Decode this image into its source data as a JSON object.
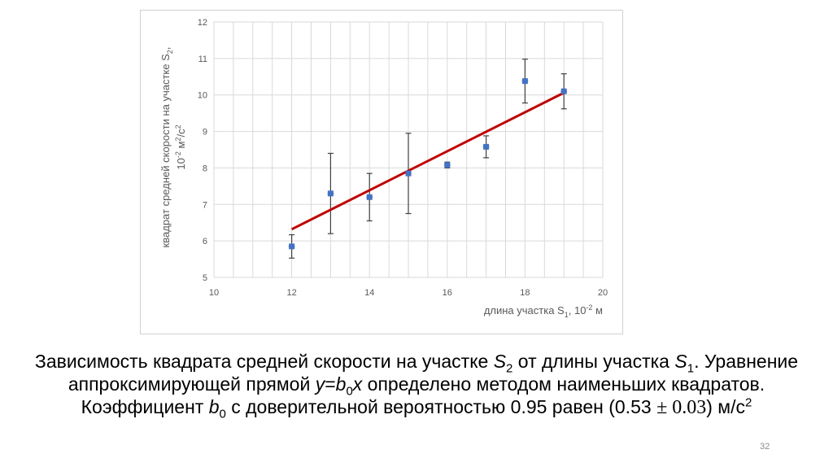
{
  "chart_data": {
    "type": "scatter",
    "x": [
      12,
      13,
      14,
      15,
      16,
      17,
      18,
      19
    ],
    "y": [
      5.85,
      7.3,
      7.2,
      7.85,
      8.08,
      8.58,
      10.38,
      10.1
    ],
    "y_err": [
      0.32,
      1.1,
      0.65,
      1.1,
      0.08,
      0.3,
      0.6,
      0.48
    ],
    "x_err": [
      0.08,
      0.08,
      0.08,
      0.08,
      0.08,
      0.08,
      0.08,
      0.08
    ],
    "fit_line": {
      "x": [
        12,
        19
      ],
      "y": [
        6.32,
        10.06
      ]
    },
    "xlim": [
      10,
      20
    ],
    "ylim": [
      5,
      12
    ],
    "x_ticks": [
      "10",
      "12",
      "14",
      "16",
      "18",
      "20"
    ],
    "y_ticks": [
      "5",
      "6",
      "7",
      "8",
      "9",
      "10",
      "11",
      "12"
    ],
    "grid": true,
    "colors": {
      "marker": "#4472c4",
      "fit": "#c00000",
      "error_bar": "#404040",
      "grid": "#d9d9d9"
    }
  },
  "axis_labels": {
    "x_main": "длина участка S",
    "x_sub": "1",
    "x_tail": ", 10",
    "x_sup": "-2",
    "x_unit": " м",
    "y_line1": "квадрат средней скорости на участке S",
    "y_line1_sub": "2",
    "y_line1_tail": ",",
    "y_line2_a": "10",
    "y_line2_sup1": "-2",
    "y_line2_b": " м",
    "y_line2_sup2": "2",
    "y_line2_c": "/с",
    "y_line2_sup3": "2"
  },
  "caption": {
    "p1": "Зависимость квадрата средней скорости на участке ",
    "s": "S",
    "sub2": "2",
    "p2": " от длины участка ",
    "sub1": "1",
    "p3": ". Уравнение аппроксимирующей прямой ",
    "eq_y": "y",
    "eq_eq": "=",
    "eq_b": "b",
    "sub0": "0",
    "eq_x": "x",
    "p4": " определено методом наименьших квадратов. Коэффициент ",
    "p5": " с доверительной вероятностью 0.95 равен (0.53 ",
    "pm": "± 0.03",
    "p6": ") м/с",
    "sup2": "2"
  },
  "slide_number": "32"
}
